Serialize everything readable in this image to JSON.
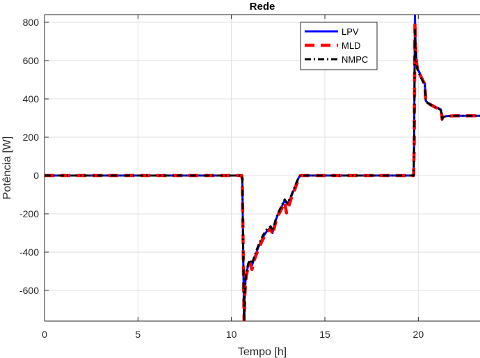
{
  "chart_data": {
    "type": "line",
    "title": "Rede",
    "xlabel": "Tempo [h]",
    "ylabel": "Potência [W]",
    "xlim": [
      0,
      23.3
    ],
    "ylim": [
      -760,
      840
    ],
    "xticks": [
      0,
      5,
      10,
      15,
      20
    ],
    "xtick_labels": [
      "0",
      "5",
      "10",
      "15",
      "20"
    ],
    "yticks": [
      -600,
      -400,
      -200,
      0,
      200,
      400,
      600,
      800
    ],
    "ytick_labels": [
      "-600",
      "-400",
      "-200",
      "0",
      "200",
      "400",
      "600",
      "800"
    ],
    "grid": true,
    "legend_position": "top-right",
    "series": [
      {
        "name": "LPV",
        "color": "#0000ff",
        "style": "solid",
        "x": [
          0,
          10.55,
          10.58,
          10.62,
          10.68,
          10.72,
          10.76,
          10.8,
          10.9,
          11.0,
          11.1,
          11.2,
          11.3,
          11.5,
          11.7,
          11.9,
          12.1,
          12.2,
          12.35,
          12.5,
          12.7,
          12.85,
          13.0,
          13.2,
          13.4,
          13.6,
          13.7,
          19.75,
          19.78,
          19.8,
          19.82,
          19.85,
          19.9,
          19.95,
          20.0,
          20.1,
          20.2,
          20.3,
          20.35,
          20.4,
          20.5,
          20.8,
          21.0,
          21.2,
          21.25,
          21.27,
          21.3,
          21.5,
          22.0,
          22.5,
          23.3
        ],
        "y": [
          0,
          0,
          -20,
          -300,
          -780,
          -600,
          -540,
          -510,
          -470,
          -450,
          -470,
          -440,
          -410,
          -360,
          -320,
          -290,
          -270,
          -300,
          -240,
          -200,
          -160,
          -130,
          -150,
          -110,
          -60,
          -10,
          0,
          0,
          200,
          600,
          840,
          700,
          600,
          570,
          550,
          530,
          510,
          490,
          480,
          390,
          380,
          365,
          355,
          345,
          320,
          290,
          305,
          310,
          312,
          312,
          312
        ]
      },
      {
        "name": "MLD",
        "color": "#ff0000",
        "style": "dashed",
        "x": [
          0,
          10.55,
          10.58,
          10.62,
          10.68,
          10.72,
          10.76,
          10.8,
          10.9,
          11.0,
          11.1,
          11.2,
          11.3,
          11.5,
          11.7,
          11.9,
          12.1,
          12.2,
          12.35,
          12.5,
          12.7,
          12.85,
          12.95,
          13.2,
          13.4,
          13.6,
          13.7,
          19.75,
          19.78,
          19.8,
          19.82,
          19.85,
          19.9,
          19.95,
          20.0,
          20.1,
          20.2,
          20.3,
          20.35,
          20.4,
          20.5,
          20.8,
          21.0,
          21.2,
          21.25,
          21.27,
          21.3,
          21.5,
          22.0,
          22.5,
          23.3
        ],
        "y": [
          0,
          0,
          -20,
          -300,
          -760,
          -620,
          -560,
          -520,
          -480,
          -460,
          -490,
          -450,
          -420,
          -370,
          -330,
          -300,
          -275,
          -310,
          -250,
          -210,
          -170,
          -140,
          -195,
          -120,
          -70,
          -15,
          0,
          0,
          150,
          500,
          800,
          680,
          590,
          560,
          545,
          525,
          505,
          485,
          475,
          385,
          378,
          362,
          352,
          342,
          318,
          295,
          305,
          310,
          312,
          312,
          312
        ]
      },
      {
        "name": "NMPC",
        "color": "#000000",
        "style": "dashdot",
        "x": [
          0,
          10.55,
          10.58,
          10.62,
          10.68,
          10.72,
          10.76,
          10.8,
          10.9,
          11.0,
          11.1,
          11.2,
          11.3,
          11.5,
          11.7,
          11.9,
          12.1,
          12.2,
          12.35,
          12.5,
          12.7,
          12.85,
          13.0,
          13.2,
          13.4,
          13.6,
          13.7,
          19.75,
          19.78,
          19.8,
          19.82,
          19.85,
          19.9,
          19.95,
          20.0,
          20.1,
          20.2,
          20.3,
          20.35,
          20.4,
          20.5,
          20.8,
          21.0,
          21.2,
          21.25,
          21.27,
          21.3,
          21.5,
          22.0,
          22.5,
          23.3
        ],
        "y": [
          0,
          0,
          -20,
          -300,
          -760,
          -610,
          -545,
          -500,
          -460,
          -440,
          -460,
          -430,
          -400,
          -350,
          -310,
          -280,
          -265,
          -290,
          -235,
          -195,
          -155,
          -125,
          -145,
          -105,
          -55,
          -8,
          0,
          0,
          180,
          560,
          760,
          650,
          580,
          555,
          540,
          520,
          500,
          480,
          470,
          385,
          378,
          362,
          352,
          342,
          318,
          290,
          305,
          310,
          312,
          312,
          312
        ]
      }
    ]
  }
}
